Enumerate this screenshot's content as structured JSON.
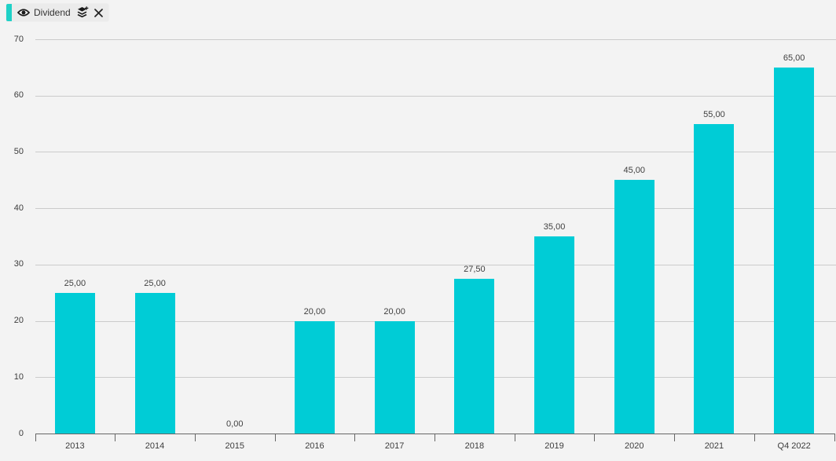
{
  "legend_chip": {
    "label": "Dividend",
    "accent_color": "#1fd1c7",
    "visibility_icon": "eye-icon",
    "layers_icon": "layers-icon",
    "close_icon": "close-icon"
  },
  "chart_data": {
    "type": "bar",
    "title": "",
    "xlabel": "",
    "ylabel": "",
    "categories": [
      "2013",
      "2014",
      "2015",
      "2016",
      "2017",
      "2018",
      "2019",
      "2020",
      "2021",
      "Q4 2022"
    ],
    "values": [
      25,
      25,
      0,
      20,
      20,
      27.5,
      35,
      45,
      55,
      65
    ],
    "data_labels": [
      "25,00",
      "25,00",
      "0,00",
      "20,00",
      "20,00",
      "27,50",
      "35,00",
      "45,00",
      "55,00",
      "65,00"
    ],
    "series_name": "Dividend",
    "y_ticks": [
      0,
      10,
      20,
      30,
      40,
      50,
      60,
      70
    ],
    "ylim": [
      0,
      70
    ],
    "grid": true,
    "legend_position": "top-left",
    "colors": {
      "bar": "#00ccd6",
      "grid": "#cbcbcb",
      "axis": "#666666",
      "text": "#3c3c3c",
      "background": "#f3f3f3"
    }
  }
}
